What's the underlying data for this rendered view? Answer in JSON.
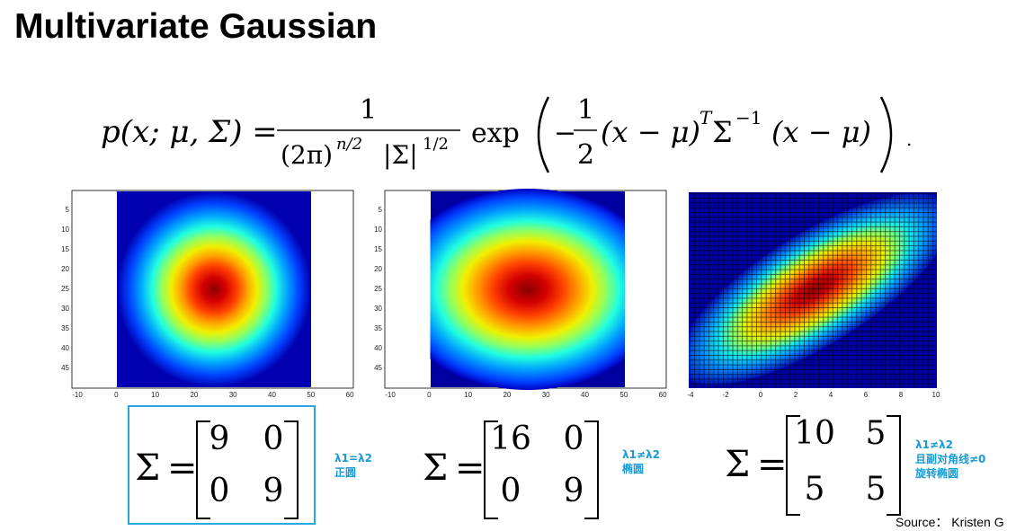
{
  "title": "Multivariate Gaussian",
  "formula": {
    "lhs": "p(x; μ, Σ) =",
    "frac_num": "1",
    "frac_den_a": "(2π)",
    "frac_den_exp": "n/2",
    "frac_den_b": "|Σ|",
    "frac_den_exp2": "1/2",
    "exp": "exp",
    "half_minus": "−",
    "half_num": "1",
    "half_den": "2",
    "quad_a": "(x − μ)",
    "quad_T": "T",
    "quad_sigma": "Σ",
    "quad_inv": "−1",
    "quad_b": "(x − μ)",
    "period": "."
  },
  "plots": [
    {
      "name": "heatmap-circle",
      "x_ticks": [
        "-10",
        "0",
        "10",
        "20",
        "30",
        "40",
        "50",
        "60"
      ],
      "y_ticks": [
        "5",
        "10",
        "15",
        "20",
        "25",
        "30",
        "35",
        "40",
        "45"
      ]
    },
    {
      "name": "heatmap-ellipse",
      "x_ticks": [
        "-10",
        "0",
        "10",
        "20",
        "30",
        "40",
        "50",
        "60"
      ],
      "y_ticks": [
        "5",
        "10",
        "15",
        "20",
        "25",
        "30",
        "35",
        "40",
        "45"
      ]
    },
    {
      "name": "mesh-rotated",
      "x_ticks": [
        "-4",
        "-2",
        "0",
        "2",
        "4",
        "6",
        "8",
        "10"
      ]
    }
  ],
  "matrices": [
    {
      "sigma": "Σ",
      "eq": "=",
      "cells": [
        "9",
        "0",
        "0",
        "9"
      ],
      "note": [
        "λ1=λ2",
        "正圆"
      ]
    },
    {
      "sigma": "Σ",
      "eq": "=",
      "cells": [
        "16",
        "0",
        "0",
        "9"
      ],
      "note": [
        "λ1≠λ2",
        "椭圆"
      ]
    },
    {
      "sigma": "Σ",
      "eq": "=",
      "cells": [
        "10",
        "5",
        "5",
        "5"
      ],
      "note": [
        "λ1≠λ2",
        "且副对角线≠0",
        "旋转椭圆"
      ]
    }
  ],
  "source": "Source： Kristen G"
}
